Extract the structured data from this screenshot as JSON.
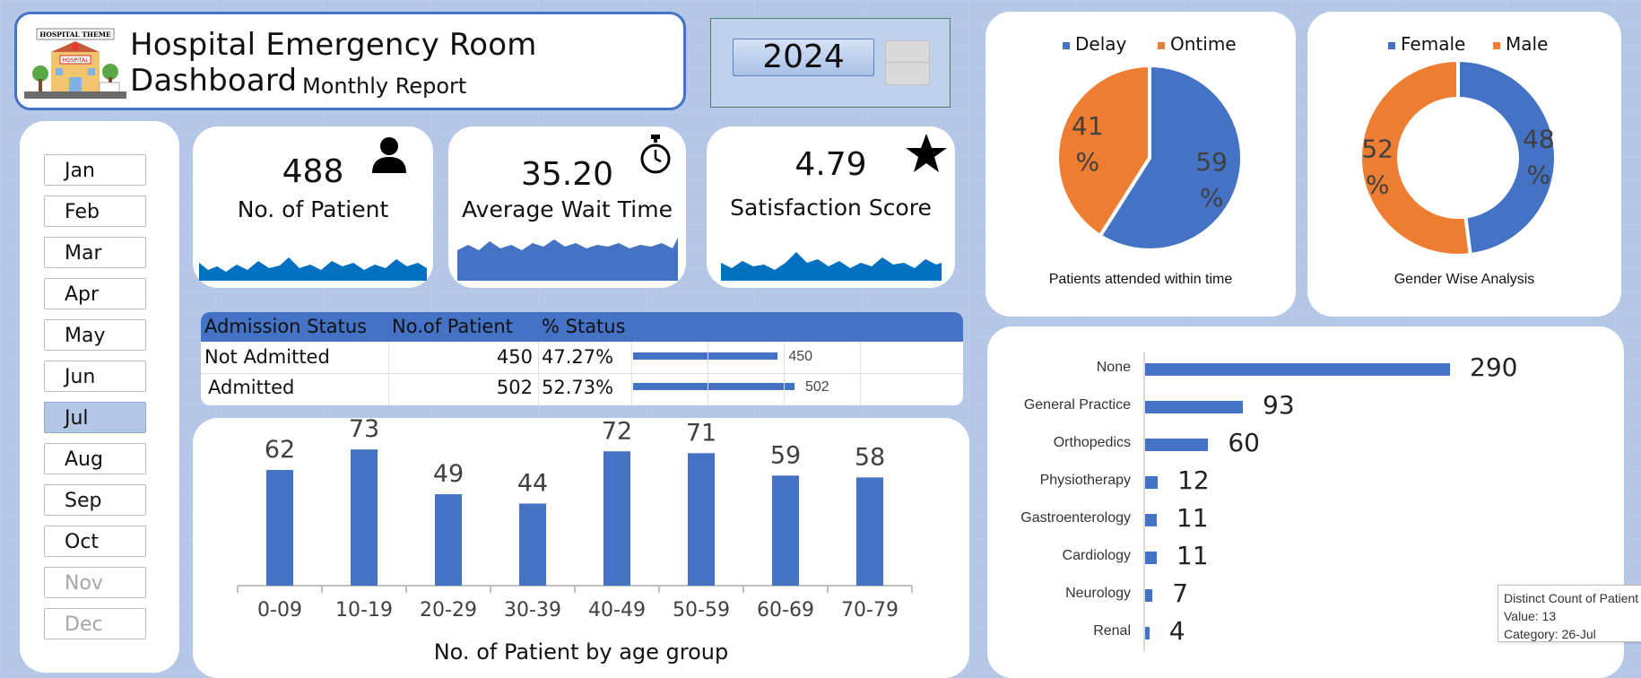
{
  "header": {
    "title": "Hospital Emergency Room Dashboard",
    "subtitle": "Monthly Report",
    "logo_text": "HOSPITAL THEME",
    "logo_sign": "HOSPITAL"
  },
  "year_slicer": {
    "selected": "2024"
  },
  "months": [
    {
      "label": "Jan",
      "state": "normal"
    },
    {
      "label": "Feb",
      "state": "normal"
    },
    {
      "label": "Mar",
      "state": "normal"
    },
    {
      "label": "Apr",
      "state": "normal"
    },
    {
      "label": "May",
      "state": "normal"
    },
    {
      "label": "Jun",
      "state": "normal"
    },
    {
      "label": "Jul",
      "state": "selected"
    },
    {
      "label": "Aug",
      "state": "normal"
    },
    {
      "label": "Sep",
      "state": "normal"
    },
    {
      "label": "Oct",
      "state": "normal"
    },
    {
      "label": "Nov",
      "state": "disabled"
    },
    {
      "label": "Dec",
      "state": "disabled"
    }
  ],
  "kpis": {
    "patients": {
      "value": "488",
      "label": "No. of Patient",
      "icon": "person-icon"
    },
    "wait": {
      "value": "35.20",
      "label": "Average Wait Time",
      "icon": "stopwatch-icon"
    },
    "satisfaction": {
      "value": "4.79",
      "label": "Satisfaction Score",
      "icon": "star-icon"
    }
  },
  "admission": {
    "headers": [
      "Admission Status",
      "No.of Patient",
      "% Status"
    ],
    "rows": [
      {
        "status": "Not Admitted",
        "count": "450",
        "pct": "47.27%",
        "bar_value": 450
      },
      {
        "status": "Admitted",
        "count": "502",
        "pct": "52.73%",
        "bar_value": 502
      }
    ]
  },
  "colors": {
    "blue": "#4472c4",
    "orange": "#ed7d31",
    "background": "#b4c7e7"
  },
  "chart_data": [
    {
      "type": "bar",
      "title": "No. of Patient by age group",
      "categories": [
        "0-09",
        "10-19",
        "20-29",
        "30-39",
        "40-49",
        "50-59",
        "60-69",
        "70-79"
      ],
      "values": [
        62,
        73,
        49,
        44,
        72,
        71,
        59,
        58
      ]
    },
    {
      "type": "pie",
      "title": "Patients attended within time",
      "labels": [
        "Delay",
        "Ontime"
      ],
      "values": [
        59,
        41
      ],
      "display": [
        "59 %",
        "41 %"
      ],
      "legend": "top"
    },
    {
      "type": "pie",
      "title": "Gender Wise Analysis",
      "labels": [
        "Female",
        "Male"
      ],
      "values": [
        48,
        52
      ],
      "display": [
        "48 %",
        "52 %"
      ],
      "legend": "top",
      "donut": true
    },
    {
      "type": "bar",
      "orientation": "horizontal",
      "categories": [
        "None",
        "General Practice",
        "Orthopedics",
        "Physiotherapy",
        "Gastroenterology",
        "Cardiology",
        "Neurology",
        "Renal"
      ],
      "values": [
        290,
        93,
        60,
        12,
        11,
        11,
        7,
        4
      ]
    }
  ],
  "tooltip": {
    "line1": "Distinct Count of Patient",
    "line2": "Value: 13",
    "line3": "Category: 26-Jul"
  }
}
